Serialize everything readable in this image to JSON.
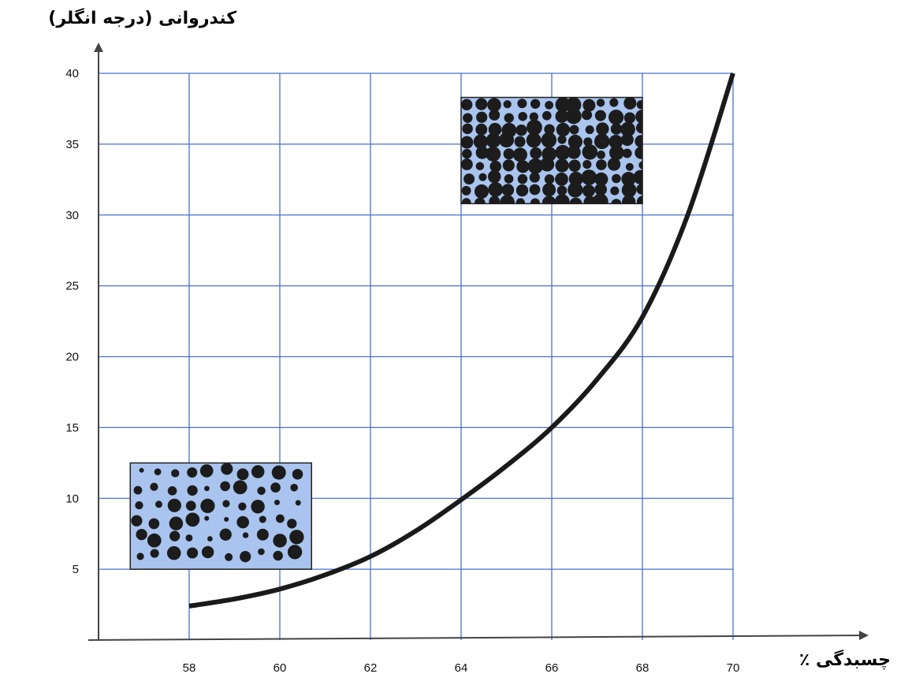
{
  "chart_data": {
    "type": "line",
    "title": "",
    "xlabel": "چسبدگی ٪",
    "ylabel": "کندروانی (درجه انگلر)",
    "x_ticks": [
      58,
      60,
      62,
      64,
      66,
      68,
      70
    ],
    "y_ticks": [
      5,
      10,
      15,
      20,
      25,
      30,
      35,
      40
    ],
    "xlim": [
      56,
      70
    ],
    "ylim": [
      0,
      40
    ],
    "grid": true,
    "grid_color": "#4a6fd0",
    "line_color": "#1a1a1a",
    "series": [
      {
        "x": [
          58,
          59,
          60,
          61,
          62,
          63,
          64,
          65,
          66,
          67,
          68,
          69,
          70
        ],
        "y": [
          2.4,
          2.9,
          3.6,
          4.6,
          5.9,
          7.7,
          9.9,
          12.3,
          15.0,
          18.4,
          22.8,
          30.0,
          40.0
        ]
      }
    ],
    "illustrations": [
      {
        "name": "loose-packing-illustration",
        "x_range": [
          56.7,
          60.7
        ],
        "y_range": [
          5,
          12.5
        ],
        "fill": "#a9c4ee"
      },
      {
        "name": "dense-packing-illustration",
        "x_range": [
          64.0,
          68.0
        ],
        "y_range": [
          30.8,
          38.3
        ],
        "fill": "#a9c4ee"
      }
    ]
  }
}
